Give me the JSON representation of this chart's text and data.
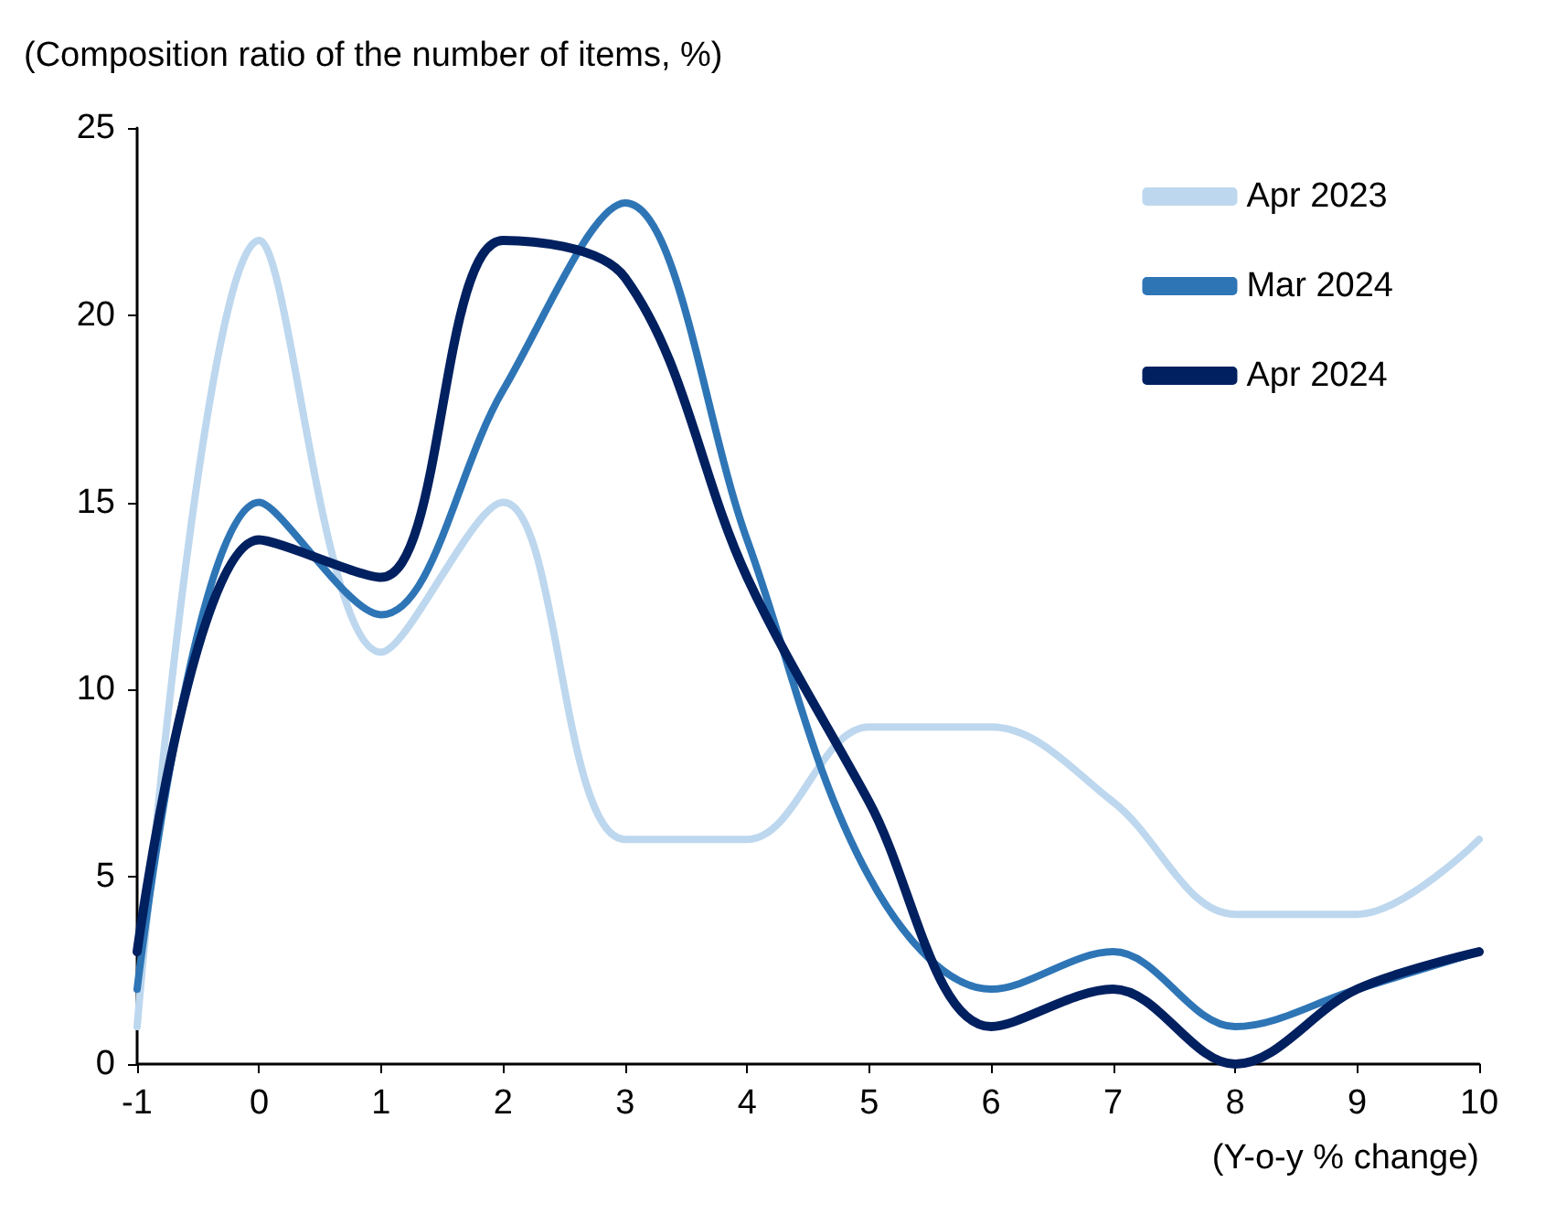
{
  "chart_data": {
    "type": "line",
    "ylabel": "(Composition ratio of the number of items, %)",
    "xlabel": "(Y-o-y % change)",
    "x": [
      -1,
      0,
      1,
      2,
      3,
      4,
      5,
      6,
      7,
      8,
      9,
      10
    ],
    "series": [
      {
        "name": "Apr 2023",
        "color": "#bdd7ee",
        "values": [
          1,
          22,
          11,
          15,
          6,
          6,
          9,
          9,
          7,
          4,
          4,
          6
        ]
      },
      {
        "name": "Mar 2024",
        "color": "#2e75b6",
        "values": [
          2,
          15,
          12,
          18,
          23,
          14,
          5,
          2,
          3,
          1,
          2,
          3
        ]
      },
      {
        "name": "Apr 2024",
        "color": "#002060",
        "values": [
          3,
          14,
          13,
          22,
          21,
          13,
          7,
          1,
          2,
          0,
          2,
          3
        ]
      }
    ],
    "xlim": [
      -1,
      10
    ],
    "xticks": [
      -1,
      0,
      1,
      2,
      3,
      4,
      5,
      6,
      7,
      8,
      9,
      10
    ],
    "ylim": [
      0,
      25
    ],
    "yticks": [
      0,
      5,
      10,
      15,
      20,
      25
    ],
    "grid": false,
    "legend": "top right",
    "marker": "none",
    "line_style": "solid"
  }
}
